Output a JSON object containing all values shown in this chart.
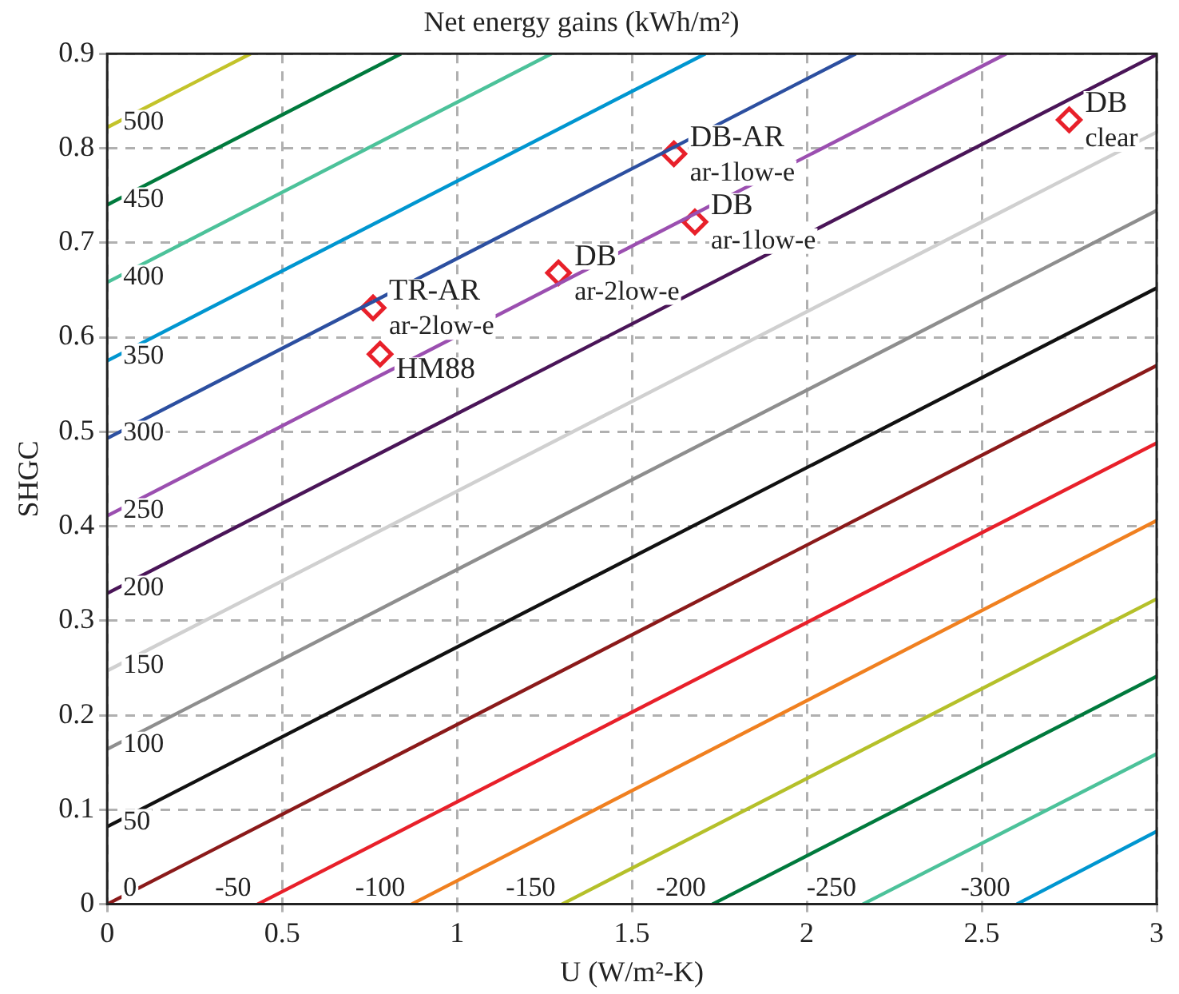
{
  "chart_data": {
    "type": "line",
    "title": "Net energy gains (kWh/m²)",
    "xlabel": "U (W/m²-K)",
    "ylabel": "SHGC",
    "xlim": [
      0,
      3
    ],
    "xticks": [
      0,
      0.5,
      1,
      1.5,
      2,
      2.5,
      3
    ],
    "ylim": [
      0,
      0.9
    ],
    "yticks": [
      0,
      0.1,
      0.2,
      0.3,
      0.4,
      0.5,
      0.6,
      0.7,
      0.8,
      0.9
    ],
    "grid": true,
    "legend": false,
    "line_style": "solid",
    "series": [
      {
        "name": "500",
        "color": "#c3c32a",
        "x": [
          0,
          0.41
        ],
        "values": [
          0.822,
          0.9
        ]
      },
      {
        "name": "450",
        "color": "#007a3d",
        "x": [
          0,
          0.84
        ],
        "values": [
          0.74,
          0.9
        ]
      },
      {
        "name": "400",
        "color": "#4cc29a",
        "x": [
          0,
          1.27
        ],
        "values": [
          0.658,
          0.9
        ]
      },
      {
        "name": "350",
        "color": "#0096d0",
        "x": [
          0,
          1.71
        ],
        "values": [
          0.575,
          0.9
        ]
      },
      {
        "name": "300",
        "color": "#2c4fa0",
        "x": [
          0,
          2.14
        ],
        "values": [
          0.493,
          0.9
        ]
      },
      {
        "name": "250",
        "color": "#9b4fb0",
        "x": [
          0,
          2.57
        ],
        "values": [
          0.411,
          0.9
        ]
      },
      {
        "name": "200",
        "color": "#4a1558",
        "x": [
          0,
          3
        ],
        "values": [
          0.329,
          0.899
        ]
      },
      {
        "name": "150",
        "color": "#d0d0d0",
        "x": [
          0,
          3
        ],
        "values": [
          0.247,
          0.817
        ]
      },
      {
        "name": "100",
        "color": "#8e8e8e",
        "x": [
          0,
          3
        ],
        "values": [
          0.164,
          0.734
        ]
      },
      {
        "name": "50",
        "color": "#111111",
        "x": [
          0,
          3
        ],
        "values": [
          0.082,
          0.652
        ]
      },
      {
        "name": "0",
        "color": "#8b1a1a",
        "x": [
          0,
          3
        ],
        "values": [
          0,
          0.57
        ]
      },
      {
        "name": "-50",
        "color": "#e8202a",
        "x": [
          0.43,
          3
        ],
        "values": [
          0,
          0.488
        ]
      },
      {
        "name": "-100",
        "color": "#f08020",
        "x": [
          0.87,
          3
        ],
        "values": [
          0,
          0.406
        ]
      },
      {
        "name": "-150",
        "color": "#b5c02a",
        "x": [
          1.3,
          3
        ],
        "values": [
          0,
          0.323
        ]
      },
      {
        "name": "-200",
        "color": "#007a3d",
        "x": [
          1.73,
          3
        ],
        "values": [
          0,
          0.241
        ]
      },
      {
        "name": "-250",
        "color": "#4cc29a",
        "x": [
          2.16,
          3
        ],
        "values": [
          0,
          0.159
        ]
      },
      {
        "name": "-300",
        "color": "#0096d0",
        "x": [
          2.6,
          3
        ],
        "values": [
          0,
          0.077
        ]
      },
      {
        "type": "scatter",
        "marker": "diamond",
        "color": "#e8202a",
        "x": [
          0.76,
          0.78,
          1.29,
          1.62,
          1.68,
          2.75
        ],
        "values": [
          0.631,
          0.582,
          0.668,
          0.794,
          0.722,
          0.83
        ]
      }
    ],
    "annotations": [
      {
        "text": "TR-AR\nar-2low-e",
        "x": 0.76,
        "y": 0.631
      },
      {
        "text": "HM88",
        "x": 0.78,
        "y": 0.582
      },
      {
        "text": "DB\nar-2low-e",
        "x": 1.29,
        "y": 0.668
      },
      {
        "text": "DB-AR\nar-1low-e",
        "x": 1.62,
        "y": 0.794
      },
      {
        "text": "DB\nar-1low-e",
        "x": 1.68,
        "y": 0.722
      },
      {
        "text": "DB\nclear",
        "x": 2.75,
        "y": 0.83
      }
    ]
  }
}
